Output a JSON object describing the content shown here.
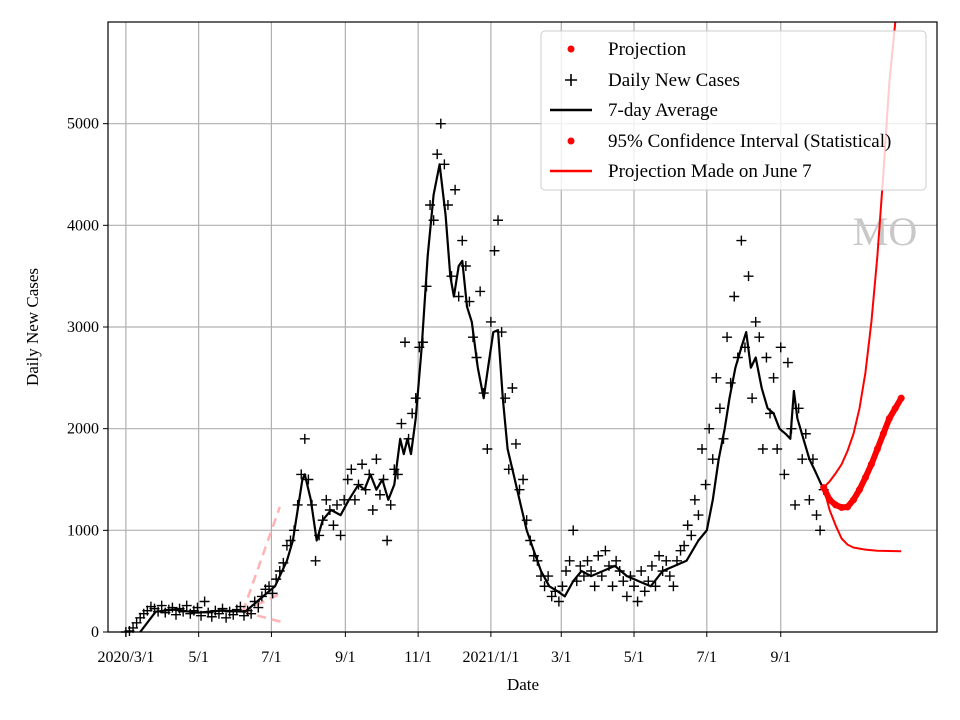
{
  "chart_data": {
    "type": "line",
    "title": "",
    "xlabel": "Date",
    "ylabel": "Daily New Cases",
    "x_units": "days since 2020/3/1",
    "xlim": [
      -15,
      680
    ],
    "ylim": [
      0,
      6000
    ],
    "grid": true,
    "legend_position": "top-right",
    "watermark": "MO",
    "colors": {
      "projection": "#ff0000",
      "daily": "#000000",
      "avg": "#000000",
      "old_projection": "#ffb3b3",
      "grid": "#b0b0b0",
      "watermark": "#c8c8c8"
    },
    "x_ticks": [
      {
        "label": "2020/3/1",
        "x": 0
      },
      {
        "label": "5/1",
        "x": 61
      },
      {
        "label": "7/1",
        "x": 122
      },
      {
        "label": "9/1",
        "x": 184
      },
      {
        "label": "11/1",
        "x": 245
      },
      {
        "label": "2021/1/1",
        "x": 306
      },
      {
        "label": "3/1",
        "x": 365
      },
      {
        "label": "5/1",
        "x": 426
      },
      {
        "label": "7/1",
        "x": 487
      },
      {
        "label": "9/1",
        "x": 549
      }
    ],
    "y_ticks": [
      {
        "label": "0",
        "y": 0
      },
      {
        "label": "1000",
        "y": 1000
      },
      {
        "label": "2000",
        "y": 2000
      },
      {
        "label": "3000",
        "y": 3000
      },
      {
        "label": "4000",
        "y": 4000
      },
      {
        "label": "5000",
        "y": 5000
      }
    ],
    "legend": [
      {
        "label": "Projection",
        "marker": "dot",
        "color": "#ff0000"
      },
      {
        "label": "Daily New Cases",
        "marker": "plus",
        "color": "#000000"
      },
      {
        "label": "7-day Average",
        "marker": "line",
        "color": "#000000"
      },
      {
        "label": "95% Confidence Interval (Statistical)",
        "marker": "dot",
        "color": "#ff0000"
      },
      {
        "label": "Projection Made on June 7",
        "marker": "line",
        "color": "#ff0000"
      }
    ],
    "daily_new_cases": {
      "x_start": 0,
      "x_step": 3,
      "values": [
        0,
        10,
        40,
        90,
        140,
        180,
        210,
        250,
        230,
        200,
        260,
        190,
        220,
        240,
        170,
        230,
        200,
        260,
        180,
        210,
        240,
        160,
        300,
        190,
        150,
        210,
        180,
        230,
        140,
        200,
        170,
        220,
        250,
        160,
        210,
        180,
        300,
        240,
        350,
        420,
        450,
        380,
        520,
        600,
        680,
        850,
        900,
        1000,
        1250,
        1550,
        1900,
        1500,
        1250,
        700,
        950,
        1100,
        1300,
        1200,
        1050,
        1250,
        950,
        1300,
        1500,
        1600,
        1300,
        1450,
        1650,
        1400,
        1550,
        1200,
        1700,
        1350,
        1500,
        900,
        1250,
        1600,
        1550,
        2050,
        2850,
        1900,
        2150,
        2300,
        2800,
        2850,
        3400,
        4200,
        4050,
        4700,
        5000,
        4600,
        4200,
        3500,
        4350,
        3300,
        3850,
        3600,
        3250,
        2900,
        2700,
        3350,
        2350,
        1800,
        3050,
        3750,
        4050,
        2950,
        2300,
        1600,
        2400,
        1850,
        1400,
        1500,
        1100,
        900,
        750,
        700,
        550,
        450,
        550,
        350,
        400,
        300,
        450,
        600,
        700,
        1000,
        500,
        650,
        550,
        700,
        600,
        450,
        750,
        550,
        800,
        650,
        450,
        700,
        600,
        500,
        350,
        550,
        450,
        300,
        600,
        400,
        500,
        650,
        450,
        750,
        600,
        700,
        550,
        450,
        700,
        800,
        850,
        1050,
        950,
        1300,
        1150,
        1800,
        1450,
        2000,
        1700,
        2500,
        2200,
        1900,
        2900,
        2450,
        3300,
        2700,
        3850,
        2800,
        3500,
        2300,
        3050,
        2900,
        1800,
        2700,
        2150,
        2500,
        1800,
        2800,
        1550,
        2650,
        2000,
        1250,
        2200,
        1700,
        1950,
        1300,
        1700,
        1150,
        1000,
        1400
      ]
    },
    "seven_day_average": [
      [
        12,
        0
      ],
      [
        25,
        200
      ],
      [
        40,
        220
      ],
      [
        60,
        190
      ],
      [
        80,
        210
      ],
      [
        100,
        200
      ],
      [
        110,
        300
      ],
      [
        120,
        400
      ],
      [
        125,
        450
      ],
      [
        135,
        700
      ],
      [
        140,
        900
      ],
      [
        148,
        1500
      ],
      [
        150,
        1550
      ],
      [
        155,
        1300
      ],
      [
        160,
        900
      ],
      [
        165,
        1100
      ],
      [
        172,
        1200
      ],
      [
        180,
        1150
      ],
      [
        187,
        1300
      ],
      [
        195,
        1450
      ],
      [
        200,
        1400
      ],
      [
        205,
        1550
      ],
      [
        210,
        1400
      ],
      [
        215,
        1500
      ],
      [
        220,
        1300
      ],
      [
        225,
        1450
      ],
      [
        230,
        1900
      ],
      [
        233,
        1750
      ],
      [
        236,
        1900
      ],
      [
        239,
        1750
      ],
      [
        243,
        2100
      ],
      [
        248,
        2800
      ],
      [
        253,
        3700
      ],
      [
        258,
        4300
      ],
      [
        263,
        4600
      ],
      [
        268,
        4100
      ],
      [
        272,
        3500
      ],
      [
        275,
        3300
      ],
      [
        279,
        3600
      ],
      [
        282,
        3650
      ],
      [
        286,
        3200
      ],
      [
        290,
        3050
      ],
      [
        295,
        2600
      ],
      [
        300,
        2300
      ],
      [
        303,
        2550
      ],
      [
        308,
        2950
      ],
      [
        312,
        2970
      ],
      [
        316,
        2300
      ],
      [
        320,
        1800
      ],
      [
        325,
        1550
      ],
      [
        330,
        1300
      ],
      [
        336,
        1000
      ],
      [
        342,
        800
      ],
      [
        348,
        600
      ],
      [
        355,
        450
      ],
      [
        362,
        400
      ],
      [
        368,
        350
      ],
      [
        375,
        500
      ],
      [
        382,
        600
      ],
      [
        390,
        550
      ],
      [
        400,
        600
      ],
      [
        410,
        650
      ],
      [
        420,
        550
      ],
      [
        430,
        500
      ],
      [
        440,
        450
      ],
      [
        450,
        600
      ],
      [
        460,
        650
      ],
      [
        470,
        700
      ],
      [
        480,
        900
      ],
      [
        487,
        1000
      ],
      [
        492,
        1300
      ],
      [
        497,
        1700
      ],
      [
        502,
        2000
      ],
      [
        506,
        2300
      ],
      [
        511,
        2600
      ],
      [
        516,
        2800
      ],
      [
        520,
        2950
      ],
      [
        524,
        2600
      ],
      [
        528,
        2700
      ],
      [
        533,
        2400
      ],
      [
        538,
        2200
      ],
      [
        543,
        2150
      ],
      [
        548,
        2000
      ],
      [
        553,
        1950
      ],
      [
        557,
        1900
      ],
      [
        560,
        2370
      ],
      [
        563,
        2100
      ],
      [
        568,
        1900
      ],
      [
        573,
        1700
      ],
      [
        578,
        1580
      ],
      [
        583,
        1450
      ],
      [
        585,
        1420
      ]
    ],
    "projection": [
      [
        585,
        1420
      ],
      [
        590,
        1300
      ],
      [
        595,
        1250
      ],
      [
        600,
        1225
      ],
      [
        605,
        1230
      ],
      [
        610,
        1300
      ],
      [
        615,
        1400
      ],
      [
        620,
        1520
      ],
      [
        625,
        1650
      ],
      [
        630,
        1800
      ],
      [
        635,
        1950
      ],
      [
        640,
        2100
      ],
      [
        645,
        2200
      ],
      [
        650,
        2300
      ]
    ],
    "ci_upper": [
      [
        585,
        1420
      ],
      [
        590,
        1480
      ],
      [
        595,
        1560
      ],
      [
        600,
        1650
      ],
      [
        605,
        1780
      ],
      [
        610,
        1950
      ],
      [
        615,
        2200
      ],
      [
        620,
        2550
      ],
      [
        625,
        3050
      ],
      [
        630,
        3700
      ],
      [
        635,
        4500
      ],
      [
        640,
        5400
      ],
      [
        645,
        6000
      ]
    ],
    "ci_lower": [
      [
        585,
        1420
      ],
      [
        590,
        1200
      ],
      [
        595,
        1050
      ],
      [
        600,
        920
      ],
      [
        605,
        860
      ],
      [
        610,
        830
      ],
      [
        620,
        810
      ],
      [
        630,
        800
      ],
      [
        650,
        795
      ]
    ],
    "projection_june7": [
      [
        [
          98,
          200
        ],
        [
          129,
          1230
        ]
      ],
      [
        [
          98,
          200
        ],
        [
          130,
          380
        ]
      ],
      [
        [
          98,
          200
        ],
        [
          130,
          100
        ]
      ]
    ]
  }
}
